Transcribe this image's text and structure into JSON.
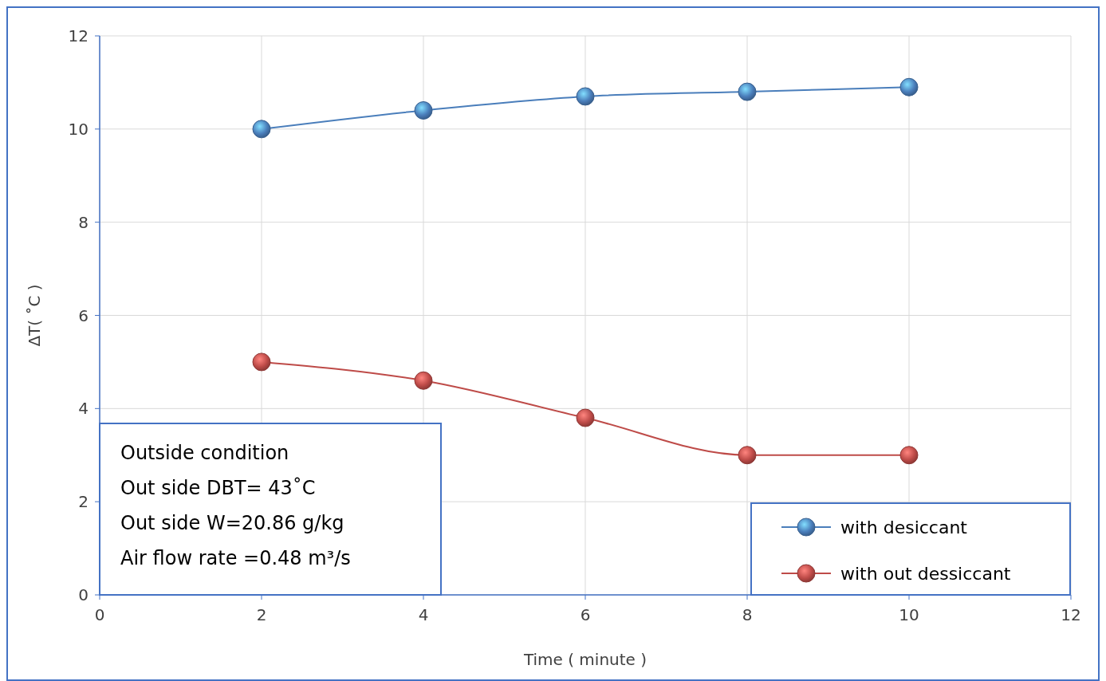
{
  "chart_data": {
    "type": "line",
    "xlabel": "Time ( minute )",
    "ylabel": "ΔT( ˚C )",
    "x": [
      2,
      4,
      6,
      8,
      10
    ],
    "series": [
      {
        "name": "with desiccant",
        "color": "#4a7ebb",
        "values": [
          10,
          10.4,
          10.7,
          10.8,
          10.9
        ]
      },
      {
        "name": "with out dessiccant",
        "color": "#be4b48",
        "values": [
          5,
          4.6,
          3.8,
          3.0,
          3.0
        ]
      }
    ],
    "xlim": [
      0,
      12
    ],
    "xticks": [
      0,
      2,
      4,
      6,
      8,
      10,
      12
    ],
    "ylim": [
      0,
      12
    ],
    "yticks": [
      0,
      2,
      4,
      6,
      8,
      10,
      12
    ],
    "grid": true,
    "legend": "bottom right",
    "marker": "circle",
    "line_style": "solid",
    "annotations": [
      "Outside condition",
      "Out side  DBT= 43˚C",
      "Out side W=20.86 g/kg",
      "Air flow rate  =0.48 m³/s"
    ]
  }
}
